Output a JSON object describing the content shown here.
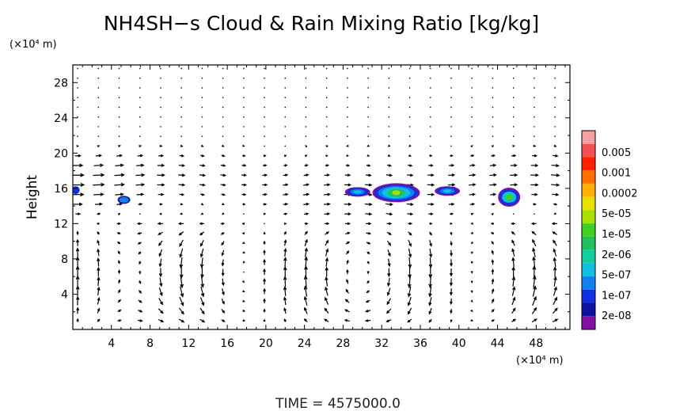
{
  "chart_data": {
    "type": "heatmap",
    "title": "NH4SH−s Cloud & Rain Mixing Ratio [kg/kg]",
    "y_unit": "(×10⁴ m)",
    "x_unit": "(×10⁴ m)",
    "ylabel": "Height",
    "xlabel": "",
    "time_label": "TIME  =  4575000.0",
    "xlim": [
      0,
      51.5
    ],
    "ylim": [
      0,
      30
    ],
    "x_ticks": [
      "4",
      "8",
      "12",
      "16",
      "20",
      "24",
      "28",
      "32",
      "36",
      "40",
      "44",
      "48"
    ],
    "y_ticks": [
      "4",
      "8",
      "12",
      "16",
      "20",
      "24",
      "28"
    ],
    "colorbar": {
      "labels": [
        "0.005",
        "0.001",
        "0.0002",
        "5e-05",
        "1e-05",
        "2e-06",
        "5e-07",
        "1e-07",
        "2e-08"
      ],
      "colors": [
        "#f4a0a0",
        "#f05050",
        "#ff2000",
        "#ff7000",
        "#ffb000",
        "#e8e000",
        "#a8e000",
        "#40d020",
        "#20c060",
        "#10d0a0",
        "#10c0e0",
        "#1080f0",
        "#1030e0",
        "#1010a0",
        "#8010a0"
      ]
    },
    "grid": false,
    "cloud_patches": [
      {
        "x": 0.3,
        "y": 15.8,
        "level": "2e-08"
      },
      {
        "x": 5.3,
        "y": 14.7,
        "level": "5e-07"
      },
      {
        "x": 29.5,
        "y": 15.6,
        "level": "1e-07"
      },
      {
        "x": 33.5,
        "y": 15.5,
        "level": "5e-05"
      },
      {
        "x": 38.8,
        "y": 15.7,
        "level": "1e-07"
      },
      {
        "x": 45.2,
        "y": 15.0,
        "level": "1e-05"
      }
    ]
  }
}
